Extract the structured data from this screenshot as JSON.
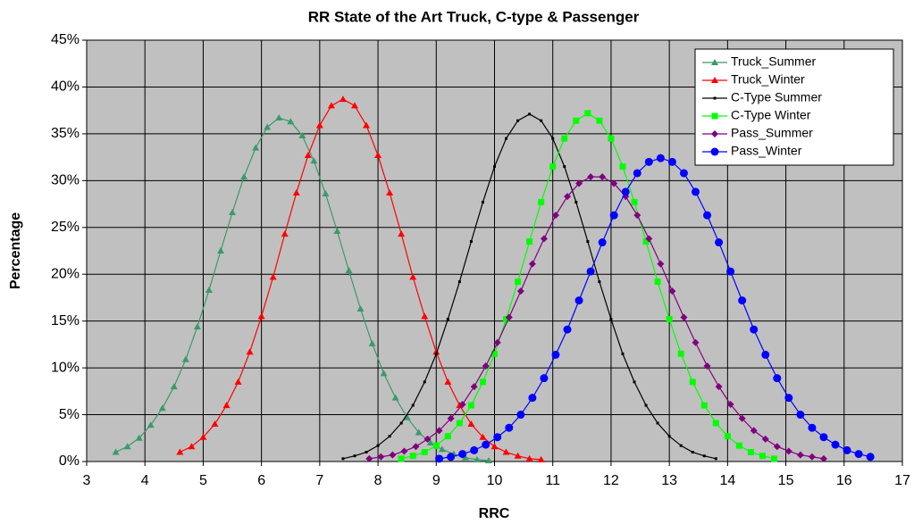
{
  "chart_data": {
    "type": "line",
    "title": "RR State of the Art Truck, C-type & Passenger",
    "xlabel": "RRC",
    "ylabel": "Percentage",
    "xlim": [
      3,
      17
    ],
    "xticks": [
      3,
      4,
      5,
      6,
      7,
      8,
      9,
      10,
      11,
      12,
      13,
      14,
      15,
      16,
      17
    ],
    "ylim": [
      0,
      45
    ],
    "yticks": [
      {
        "value": 0,
        "label": "0%"
      },
      {
        "value": 5,
        "label": "5%"
      },
      {
        "value": 10,
        "label": "10%"
      },
      {
        "value": 15,
        "label": "15%"
      },
      {
        "value": 20,
        "label": "20%"
      },
      {
        "value": 25,
        "label": "25%"
      },
      {
        "value": 30,
        "label": "30%"
      },
      {
        "value": 35,
        "label": "35%"
      },
      {
        "value": 40,
        "label": "40%"
      },
      {
        "value": 45,
        "label": "45%"
      }
    ],
    "grid": true,
    "legend": "upper right",
    "series": [
      {
        "name": "Truck_Summer",
        "color": "#3a9a6a",
        "marker": "triangle",
        "x": [
          3.5,
          3.7,
          3.9,
          4.1,
          4.3,
          4.5,
          4.7,
          4.9,
          5.1,
          5.3,
          5.5,
          5.7,
          5.9,
          6.1,
          6.3,
          6.5,
          6.7,
          6.9,
          7.1,
          7.3,
          7.5,
          7.7,
          7.9,
          8.1,
          8.3,
          8.5,
          8.7,
          8.9,
          9.1,
          9.3,
          9.5,
          9.7,
          9.9
        ],
        "values": [
          1.0,
          1.6,
          2.5,
          3.9,
          5.7,
          8.0,
          10.9,
          14.4,
          18.3,
          22.5,
          26.6,
          30.4,
          33.5,
          35.7,
          36.7,
          36.3,
          34.8,
          32.1,
          28.6,
          24.6,
          20.4,
          16.3,
          12.6,
          9.4,
          6.8,
          4.7,
          3.1,
          2.0,
          1.3,
          0.8,
          0.4,
          0.2,
          0.1
        ]
      },
      {
        "name": "Truck_Winter",
        "color": "#ff0000",
        "marker": "triangle",
        "x": [
          4.6,
          4.8,
          5.0,
          5.2,
          5.4,
          5.6,
          5.8,
          6.0,
          6.2,
          6.4,
          6.6,
          6.8,
          7.0,
          7.2,
          7.4,
          7.6,
          7.8,
          8.0,
          8.2,
          8.4,
          8.6,
          8.8,
          9.0,
          9.2,
          9.4,
          9.6,
          9.8,
          10.0,
          10.2,
          10.4,
          10.6,
          10.8
        ],
        "values": [
          1.0,
          1.6,
          2.6,
          4.0,
          6.0,
          8.5,
          11.7,
          15.5,
          19.7,
          24.3,
          28.7,
          32.7,
          35.9,
          38.0,
          38.7,
          38.0,
          35.9,
          32.7,
          28.7,
          24.3,
          19.7,
          15.5,
          11.7,
          8.5,
          6.0,
          4.0,
          2.6,
          1.6,
          1.0,
          0.6,
          0.3,
          0.2
        ]
      },
      {
        "name": "C-Type Summer",
        "color": "#000000",
        "marker": "dot",
        "x": [
          7.4,
          7.6,
          7.8,
          8.0,
          8.2,
          8.4,
          8.6,
          8.8,
          9.0,
          9.2,
          9.4,
          9.6,
          9.8,
          10.0,
          10.2,
          10.4,
          10.6,
          10.8,
          11.0,
          11.2,
          11.4,
          11.6,
          11.8,
          12.0,
          12.2,
          12.4,
          12.6,
          12.8,
          13.0,
          13.2,
          13.4,
          13.6,
          13.8
        ],
        "values": [
          0.3,
          0.6,
          1.0,
          1.7,
          2.7,
          4.1,
          6.0,
          8.5,
          11.5,
          15.2,
          19.2,
          23.5,
          27.7,
          31.5,
          34.5,
          36.4,
          37.1,
          36.4,
          34.5,
          31.5,
          27.7,
          23.5,
          19.2,
          15.2,
          11.5,
          8.5,
          6.0,
          4.1,
          2.7,
          1.7,
          1.0,
          0.6,
          0.3
        ]
      },
      {
        "name": "C-Type Winter",
        "color": "#00ff00",
        "marker": "square",
        "x": [
          8.4,
          8.6,
          8.8,
          9.0,
          9.2,
          9.4,
          9.6,
          9.8,
          10.0,
          10.2,
          10.4,
          10.6,
          10.8,
          11.0,
          11.2,
          11.4,
          11.6,
          11.8,
          12.0,
          12.2,
          12.4,
          12.6,
          12.8,
          13.0,
          13.2,
          13.4,
          13.6,
          13.8,
          14.0,
          14.2,
          14.4,
          14.6,
          14.8
        ],
        "values": [
          0.3,
          0.6,
          1.0,
          1.7,
          2.7,
          4.1,
          6.0,
          8.5,
          11.5,
          15.2,
          19.2,
          23.5,
          27.7,
          31.5,
          34.5,
          36.4,
          37.2,
          36.4,
          34.5,
          31.5,
          27.7,
          23.5,
          19.2,
          15.2,
          11.5,
          8.5,
          6.0,
          4.1,
          2.7,
          1.7,
          1.0,
          0.6,
          0.3
        ]
      },
      {
        "name": "Pass_Summer",
        "color": "#800080",
        "marker": "diamond",
        "x": [
          7.85,
          8.05,
          8.25,
          8.45,
          8.65,
          8.85,
          9.05,
          9.25,
          9.45,
          9.65,
          9.85,
          10.05,
          10.25,
          10.45,
          10.65,
          10.85,
          11.05,
          11.25,
          11.45,
          11.65,
          11.85,
          12.05,
          12.25,
          12.45,
          12.65,
          12.85,
          13.05,
          13.25,
          13.45,
          13.65,
          13.85,
          14.05,
          14.25,
          14.45,
          14.65,
          14.85,
          15.05,
          15.25,
          15.45,
          15.65
        ],
        "values": [
          0.3,
          0.5,
          0.7,
          1.1,
          1.6,
          2.4,
          3.3,
          4.6,
          6.1,
          8.0,
          10.2,
          12.7,
          15.4,
          18.2,
          21.1,
          23.8,
          26.3,
          28.3,
          29.7,
          30.4,
          30.4,
          29.7,
          28.3,
          26.3,
          23.8,
          21.1,
          18.2,
          15.4,
          12.7,
          10.2,
          8.0,
          6.1,
          4.6,
          3.3,
          2.4,
          1.6,
          1.1,
          0.7,
          0.5,
          0.3
        ]
      },
      {
        "name": "Pass_Winter",
        "color": "#0000ff",
        "marker": "circle",
        "x": [
          9.05,
          9.25,
          9.45,
          9.65,
          9.85,
          10.05,
          10.25,
          10.45,
          10.65,
          10.85,
          11.05,
          11.25,
          11.45,
          11.65,
          11.85,
          12.05,
          12.25,
          12.45,
          12.65,
          12.85,
          13.05,
          13.25,
          13.45,
          13.65,
          13.85,
          14.05,
          14.25,
          14.45,
          14.65,
          14.85,
          15.05,
          15.25,
          15.45,
          15.65,
          15.85,
          16.05,
          16.25,
          16.45
        ],
        "values": [
          0.3,
          0.5,
          0.8,
          1.2,
          1.8,
          2.6,
          3.6,
          5.0,
          6.8,
          8.9,
          11.4,
          14.1,
          17.2,
          20.3,
          23.4,
          26.3,
          28.8,
          30.8,
          32.0,
          32.4,
          32.0,
          30.8,
          28.8,
          26.3,
          23.4,
          20.3,
          17.2,
          14.1,
          11.4,
          8.9,
          6.8,
          5.0,
          3.6,
          2.6,
          1.8,
          1.2,
          0.8,
          0.5
        ]
      }
    ]
  }
}
